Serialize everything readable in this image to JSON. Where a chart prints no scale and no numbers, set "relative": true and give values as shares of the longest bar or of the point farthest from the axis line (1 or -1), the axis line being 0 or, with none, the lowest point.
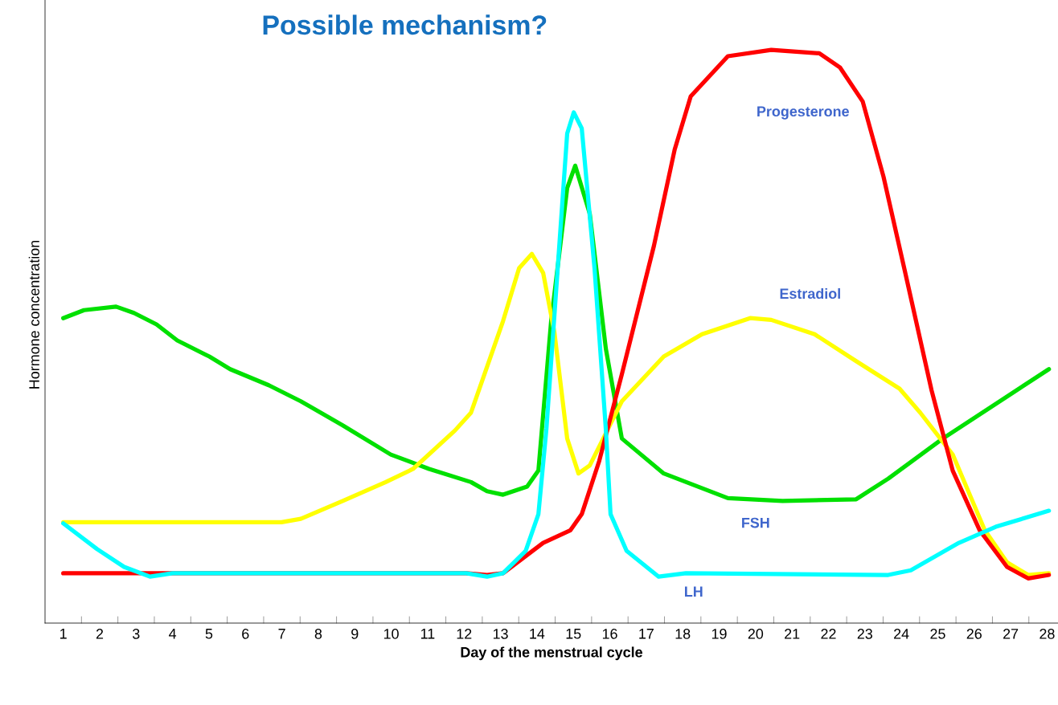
{
  "chart_data": {
    "type": "line",
    "title": "Possible mechanism?",
    "xlabel": "Day of the menstrual cycle",
    "ylabel": "Hormone concentration",
    "relative": true,
    "xlim": [
      0.5,
      28.3
    ],
    "xticks": [
      1,
      2,
      3,
      4,
      5,
      6,
      7,
      8,
      9,
      10,
      11,
      12,
      13,
      14,
      15,
      16,
      17,
      18,
      19,
      20,
      21,
      22,
      23,
      24,
      25,
      26,
      27,
      28
    ],
    "grid": false,
    "marker": "none",
    "line_style": "solid",
    "series": [
      {
        "name": "FSH",
        "color": "#00e000",
        "x": [
          1.0,
          1.57,
          2.45,
          2.94,
          3.56,
          4.13,
          5.01,
          5.58,
          6.64,
          7.52,
          8.67,
          9.99,
          11.04,
          12.19,
          12.63,
          13.07,
          13.73,
          14.04,
          14.39,
          14.83,
          15.05,
          15.45,
          15.89,
          16.33,
          17.48,
          19.24,
          20.74,
          22.76,
          23.64,
          25.14,
          28.05
        ],
        "values": [
          0.532,
          0.546,
          0.552,
          0.541,
          0.521,
          0.493,
          0.465,
          0.443,
          0.415,
          0.387,
          0.345,
          0.294,
          0.269,
          0.246,
          0.23,
          0.224,
          0.238,
          0.266,
          0.527,
          0.759,
          0.798,
          0.714,
          0.479,
          0.322,
          0.261,
          0.218,
          0.213,
          0.216,
          0.252,
          0.322,
          0.443
        ]
      },
      {
        "name": "Estradiol",
        "color": "#ffff00",
        "x": [
          1.0,
          6.99,
          7.52,
          8.67,
          9.85,
          10.6,
          11.75,
          12.19,
          13.07,
          13.51,
          13.86,
          14.17,
          14.48,
          14.83,
          15.14,
          15.45,
          16.33,
          17.48,
          18.53,
          19.85,
          20.43,
          21.62,
          22.76,
          23.95,
          24.52,
          25.41,
          26.29,
          26.9,
          27.48,
          28.05
        ],
        "values": [
          0.176,
          0.176,
          0.182,
          0.213,
          0.246,
          0.269,
          0.336,
          0.367,
          0.527,
          0.619,
          0.644,
          0.611,
          0.507,
          0.322,
          0.261,
          0.275,
          0.387,
          0.465,
          0.504,
          0.532,
          0.529,
          0.504,
          0.457,
          0.409,
          0.367,
          0.294,
          0.162,
          0.106,
          0.084,
          0.087
        ]
      },
      {
        "name": "Progesterone",
        "color": "#ff0000",
        "x": [
          1.0,
          12.06,
          12.63,
          13.07,
          14.17,
          14.92,
          15.23,
          15.71,
          16.33,
          17.21,
          17.78,
          18.22,
          19.24,
          20.43,
          21.75,
          22.32,
          22.94,
          23.51,
          24.08,
          24.83,
          25.41,
          26.15,
          26.9,
          27.48,
          28.05
        ],
        "values": [
          0.087,
          0.087,
          0.084,
          0.087,
          0.14,
          0.162,
          0.19,
          0.283,
          0.434,
          0.658,
          0.826,
          0.919,
          0.989,
          1.0,
          0.994,
          0.969,
          0.91,
          0.779,
          0.619,
          0.406,
          0.266,
          0.162,
          0.098,
          0.078,
          0.084
        ]
      },
      {
        "name": "LH",
        "color": "#00ffff",
        "x": [
          1.0,
          1.93,
          2.67,
          3.38,
          4.0,
          12.06,
          12.63,
          13.07,
          13.69,
          14.04,
          14.26,
          14.57,
          14.83,
          15.01,
          15.23,
          15.58,
          15.89,
          16.02,
          16.46,
          17.34,
          18.09,
          23.64,
          24.26,
          25.58,
          26.59,
          28.05
        ],
        "values": [
          0.174,
          0.129,
          0.098,
          0.081,
          0.087,
          0.087,
          0.081,
          0.087,
          0.126,
          0.19,
          0.339,
          0.619,
          0.854,
          0.891,
          0.863,
          0.619,
          0.339,
          0.19,
          0.126,
          0.081,
          0.087,
          0.084,
          0.092,
          0.14,
          0.168,
          0.196
        ]
      }
    ]
  }
}
